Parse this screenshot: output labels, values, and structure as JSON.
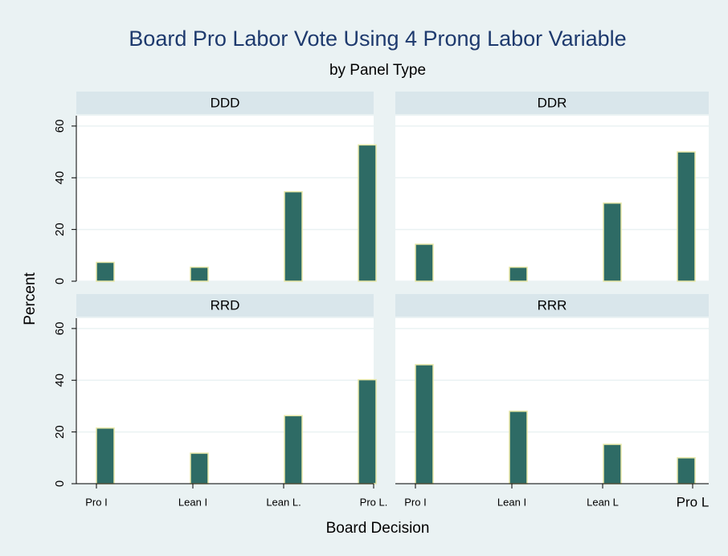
{
  "title": "Board Pro Labor Vote Using 4 Prong Labor Variable",
  "subtitle": "by Panel Type",
  "x_label": "Board Decision",
  "y_label": "Percent",
  "chart_data": [
    {
      "type": "bar",
      "title": "DDD",
      "values": [
        7.3,
        5.4,
        34.6,
        52.7
      ],
      "color": "#2e6b65",
      "ylim": [
        0,
        64
      ],
      "yticks": [
        0,
        20,
        40,
        60
      ],
      "grid": true
    },
    {
      "type": "bar",
      "title": "DDR",
      "values": [
        14.3,
        5.4,
        30.2,
        50
      ],
      "color": "#2e6b65",
      "ylim": [
        0,
        64
      ],
      "yticks": [
        0,
        20,
        40,
        60
      ],
      "grid": true
    },
    {
      "type": "bar",
      "title": "RRD",
      "categories": [
        "Pro I",
        "Lean I",
        "Lean L.",
        "Pro L."
      ],
      "values": [
        21.5,
        11.8,
        26.3,
        40.2
      ],
      "color": "#2e6b65",
      "ylim": [
        0,
        64
      ],
      "yticks": [
        0,
        20,
        40,
        60
      ],
      "grid": true
    },
    {
      "type": "bar",
      "title": "RRR",
      "categories": [
        "Pro I",
        "Lean I",
        "Lean L",
        "Pro L"
      ],
      "values": [
        46,
        28,
        15.2,
        10
      ],
      "color": "#2e6b65",
      "ylim": [
        0,
        64
      ],
      "yticks": [
        0,
        20,
        40,
        60
      ],
      "grid": true
    }
  ]
}
